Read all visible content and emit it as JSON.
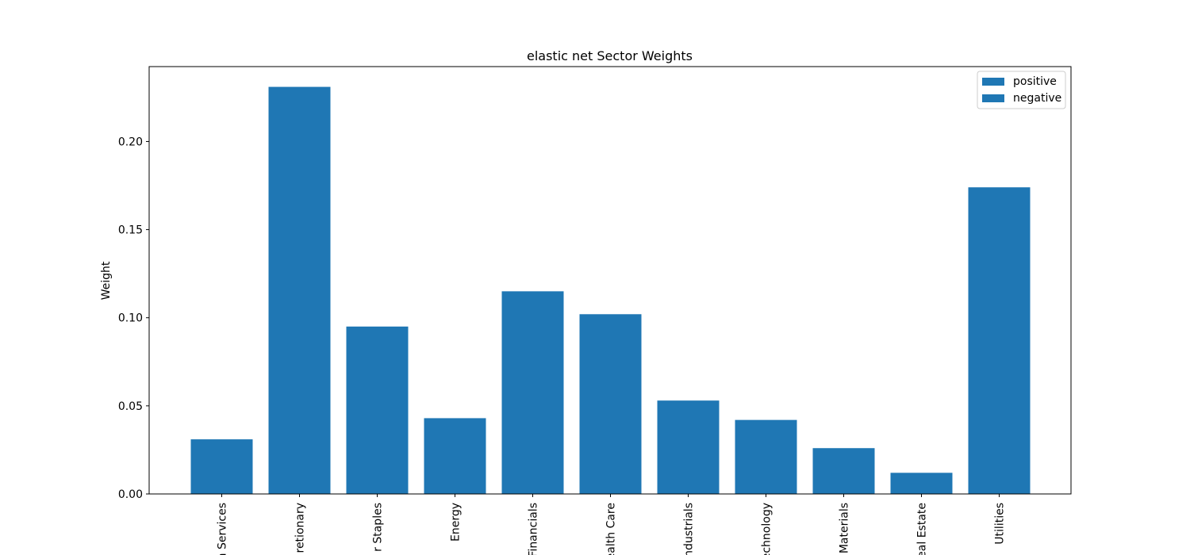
{
  "chart_data": {
    "type": "bar",
    "title": "elastic net Sector Weights",
    "xlabel": "",
    "ylabel": "Weight",
    "categories": [
      "Communication Services",
      "Consumer Discretionary",
      "Consumer Staples",
      "Energy",
      "Financials",
      "Health Care",
      "Industrials",
      "Information Technology",
      "Materials",
      "Real Estate",
      "Utilities"
    ],
    "visible_tick_labels": [
      "n Services",
      "retionary",
      "r Staples",
      "Energy",
      "Financials",
      "ealth Care",
      "ndustrials",
      "echnology",
      "Materials",
      "eal Estate",
      "Utilities"
    ],
    "series": [
      {
        "name": "positive",
        "values": [
          0.031,
          0.231,
          0.095,
          0.043,
          0.115,
          0.102,
          0.053,
          0.042,
          0.026,
          0.012,
          0.174
        ]
      },
      {
        "name": "negative",
        "values": [
          0,
          0,
          0,
          0,
          0,
          0,
          0,
          0,
          0,
          0,
          0
        ]
      }
    ],
    "ylim": [
      0,
      0.2425
    ],
    "yticks": [
      "0.00",
      "0.05",
      "0.10",
      "0.15",
      "0.20"
    ],
    "ytick_values": [
      0,
      0.05,
      0.1,
      0.15,
      0.2
    ],
    "legend": {
      "placement": "top-right",
      "entries": [
        "positive",
        "negative"
      ]
    },
    "grid": false,
    "colors": {
      "positive": "#1f77b4",
      "negative": "#1f77b4"
    }
  }
}
